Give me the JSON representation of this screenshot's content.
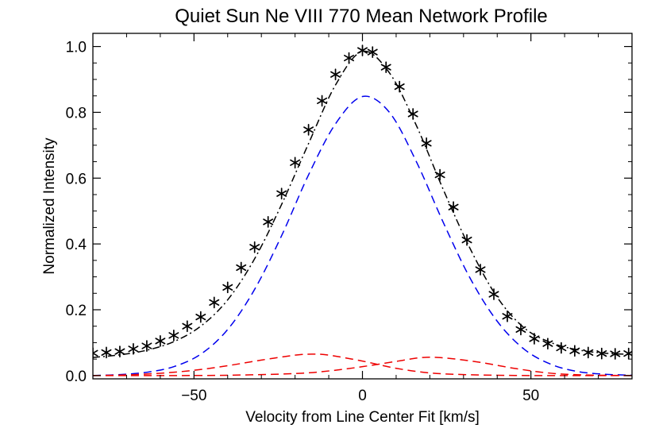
{
  "chart_data": {
    "type": "line",
    "title": "Quiet Sun Ne VIII 770 Mean Network Profile",
    "xlabel": "Velocity from Line Center Fit [km/s]",
    "ylabel": "Normalized Intensity",
    "xlim": [
      -80,
      80
    ],
    "ylim": [
      -0.01,
      1.04
    ],
    "xticks": [
      -50,
      0,
      50
    ],
    "xtick_labels": [
      "−50",
      "0",
      "50"
    ],
    "yticks": [
      0.0,
      0.2,
      0.4,
      0.6,
      0.8,
      1.0
    ],
    "ytick_labels": [
      "0.0",
      "0.2",
      "0.4",
      "0.6",
      "0.8",
      "1.0"
    ],
    "grid": false,
    "colors": {
      "data": "#000000",
      "total": "#000000",
      "core": "#0000ee",
      "wings": "#ee0000"
    },
    "series": [
      {
        "style": "asterisk markers",
        "x": [
          -80,
          -76,
          -72,
          -68,
          -64,
          -60,
          -56,
          -52,
          -48,
          -44,
          -40,
          -36,
          -32,
          -28,
          -24,
          -20,
          -16,
          -12,
          -8,
          -4,
          0,
          3,
          7,
          11,
          15,
          19,
          23,
          27,
          31,
          35,
          39,
          43,
          47,
          51,
          55,
          59,
          63,
          67,
          71,
          75,
          79
        ],
        "y": [
          0.068,
          0.07,
          0.073,
          0.081,
          0.09,
          0.105,
          0.122,
          0.15,
          0.178,
          0.222,
          0.268,
          0.328,
          0.39,
          0.467,
          0.553,
          0.647,
          0.747,
          0.835,
          0.915,
          0.965,
          0.988,
          0.983,
          0.937,
          0.878,
          0.795,
          0.706,
          0.61,
          0.512,
          0.412,
          0.322,
          0.247,
          0.18,
          0.14,
          0.112,
          0.097,
          0.084,
          0.075,
          0.07,
          0.067,
          0.066,
          0.067
        ]
      },
      {
        "style": "dash-dot",
        "x": [
          -80,
          -72,
          -64,
          -56,
          -48,
          -40,
          -32,
          -24,
          -16,
          -8,
          0,
          8,
          16,
          24,
          32,
          40,
          48,
          56,
          64,
          72,
          80
        ],
        "y": [
          0.055,
          0.063,
          0.077,
          0.103,
          0.15,
          0.23,
          0.355,
          0.52,
          0.705,
          0.883,
          0.985,
          0.92,
          0.76,
          0.565,
          0.385,
          0.238,
          0.145,
          0.1,
          0.078,
          0.068,
          0.064
        ]
      },
      {
        "style": "dashed",
        "x": [
          -80,
          -72,
          -64,
          -56,
          -48,
          -40,
          -32,
          -24,
          -16,
          -8,
          0,
          8,
          16,
          24,
          32,
          40,
          48,
          56,
          64,
          72,
          80
        ],
        "y": [
          0.0,
          0.003,
          0.01,
          0.027,
          0.065,
          0.14,
          0.262,
          0.425,
          0.61,
          0.765,
          0.848,
          0.8,
          0.65,
          0.465,
          0.295,
          0.165,
          0.08,
          0.034,
          0.012,
          0.004,
          0.001
        ]
      },
      {
        "style": "dashed",
        "x": [
          -80,
          -70,
          -60,
          -50,
          -40,
          -30,
          -20,
          -15,
          -10,
          0,
          10,
          20,
          30,
          40,
          50,
          60,
          70,
          80
        ],
        "y": [
          0.0,
          0.002,
          0.007,
          0.016,
          0.03,
          0.047,
          0.062,
          0.065,
          0.062,
          0.044,
          0.022,
          0.008,
          0.003,
          0.001,
          0.0,
          0.0,
          0.0,
          0.0
        ]
      },
      {
        "style": "dashed",
        "x": [
          -80,
          -60,
          -40,
          -20,
          -10,
          0,
          10,
          18,
          25,
          35,
          45,
          55,
          65,
          80
        ],
        "y": [
          0.0,
          0.0,
          0.001,
          0.006,
          0.014,
          0.027,
          0.043,
          0.055,
          0.053,
          0.04,
          0.022,
          0.008,
          0.002,
          0.0
        ]
      }
    ]
  }
}
